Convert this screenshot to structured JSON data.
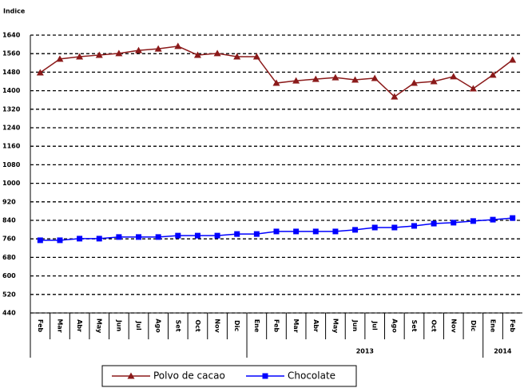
{
  "chart_data": {
    "type": "line",
    "y_axis_label": "Indice",
    "categories": [
      "Feb",
      "Mar",
      "Abr",
      "May",
      "Jun",
      "Jul",
      "Ago",
      "Set",
      "Oct",
      "Nov",
      "Dic",
      "Ene",
      "Feb",
      "Mar",
      "Abr",
      "May",
      "Jun",
      "Jul",
      "Ago",
      "Set",
      "Oct",
      "Nov",
      "Dic",
      "Ene",
      "Feb"
    ],
    "category_groups": [
      null,
      null,
      null,
      null,
      null,
      null,
      null,
      null,
      null,
      null,
      null,
      "2013",
      "2013",
      "2013",
      "2013",
      "2013",
      "2013",
      "2013",
      "2013",
      "2013",
      "2013",
      "2013",
      "2013",
      "2014",
      "2014"
    ],
    "series": [
      {
        "name": "Polvo de cacao",
        "color": "#8b1a1a",
        "marker": "triangle",
        "values": [
          1478,
          1537,
          1547,
          1554,
          1561,
          1574,
          1581,
          1592,
          1554,
          1561,
          1547,
          1547,
          1433,
          1443,
          1450,
          1457,
          1447,
          1454,
          1374,
          1433,
          1440,
          1461,
          1409,
          1468,
          1533
        ]
      },
      {
        "name": "Chocolate",
        "color": "#0000ff",
        "marker": "square",
        "values": [
          754,
          754,
          761,
          761,
          768,
          768,
          768,
          774,
          774,
          774,
          781,
          781,
          792,
          792,
          792,
          792,
          799,
          809,
          809,
          816,
          826,
          830,
          837,
          843,
          850
        ]
      }
    ],
    "ylim": [
      440,
      1640
    ],
    "yticks": [
      440,
      520,
      600,
      680,
      760,
      840,
      920,
      1000,
      1080,
      1160,
      1240,
      1320,
      1400,
      1480,
      1560,
      1640
    ],
    "grid": true
  }
}
